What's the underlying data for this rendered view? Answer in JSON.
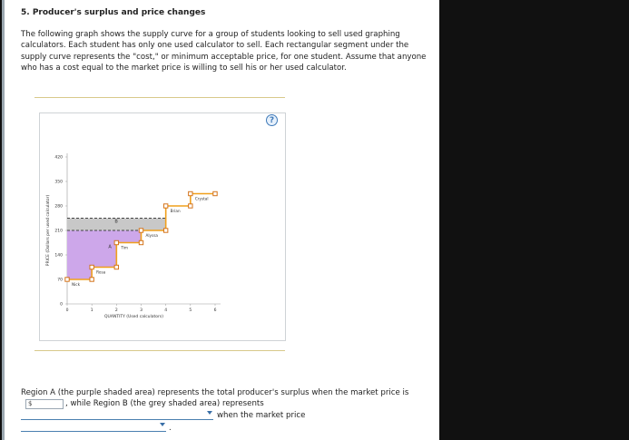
{
  "question": {
    "title": "5. Producer's surplus and price changes",
    "intro": "The following graph shows the supply curve for a group of students looking to sell used graphing calculators. Each student has only one used calculator to sell. Each rectangular segment under the supply curve represents the \"cost,\" or minimum acceptable price, for one student. Assume that anyone who has a cost equal to the market price is willing to sell his or her used calculator."
  },
  "graph": {
    "help_label": "?",
    "region_a_label": "A",
    "region_b_label": "B",
    "colors": {
      "supply": "#f0a01c",
      "handle": "#d4731a",
      "region_a": "#cda7ea",
      "region_b": "#c8c8c8",
      "price_line": "#444444"
    }
  },
  "chart_data": {
    "type": "step",
    "xlabel": "QUANTITY (Used calculators)",
    "ylabel": "PRICE (Dollars per used calculator)",
    "xlim": [
      0,
      6
    ],
    "ylim": [
      0,
      420
    ],
    "x_ticks": [
      0,
      1,
      2,
      3,
      4,
      5,
      6
    ],
    "y_ticks": [
      0,
      70,
      140,
      210,
      280,
      350,
      420
    ],
    "sellers": [
      {
        "name": "Nick",
        "x_start": 0,
        "x_end": 1,
        "cost": 70
      },
      {
        "name": "Rosa",
        "x_start": 1,
        "x_end": 2,
        "cost": 105
      },
      {
        "name": "Tim",
        "x_start": 2,
        "x_end": 3,
        "cost": 175
      },
      {
        "name": "Alyssa",
        "x_start": 3,
        "x_end": 4,
        "cost": 210
      },
      {
        "name": "Brian",
        "x_start": 4,
        "x_end": 5,
        "cost": 280
      },
      {
        "name": "Crystal",
        "x_start": 5,
        "x_end": 6,
        "cost": 315
      }
    ],
    "price_lines": [
      245,
      210
    ],
    "region_a": {
      "label": "A",
      "upper_price": 210
    },
    "region_b": {
      "label": "B",
      "lower_price": 210,
      "upper_price": 245,
      "x_end": 4
    }
  },
  "answer": {
    "text_before": "Region A (the purple shaded area) represents the total producer's surplus when the market price is",
    "dollar_sign": "$",
    "input_value": "",
    "text_mid": ", while Region B (the grey shaded area) represents",
    "text_when": "when the market price",
    "dropdown1_value": "",
    "dropdown2_value": "",
    "period": "."
  }
}
